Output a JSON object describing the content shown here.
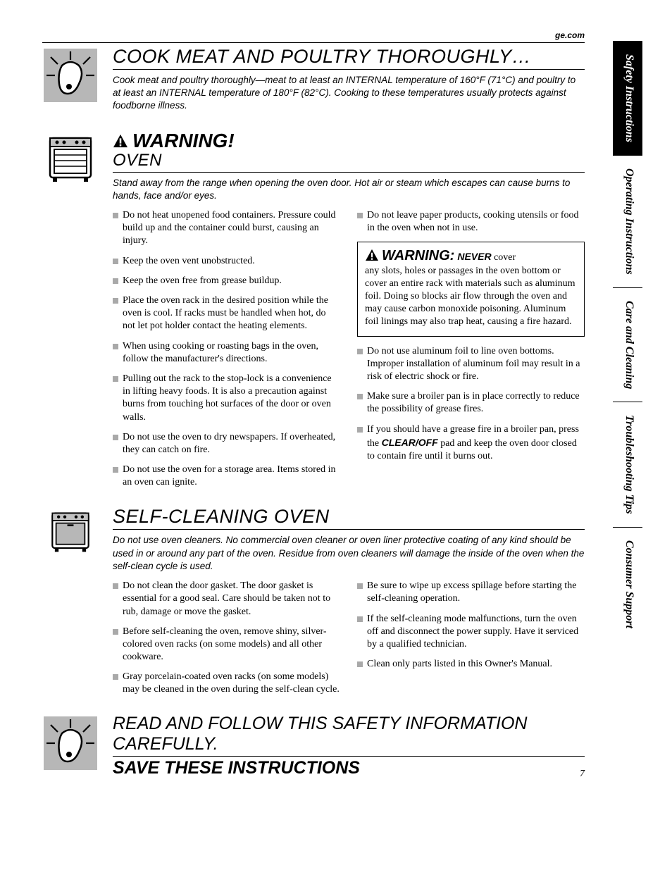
{
  "brand": "ge.com",
  "page_number": "7",
  "side_tabs": [
    {
      "label": "Safety Instructions",
      "active": true
    },
    {
      "label": "Operating Instructions",
      "active": false
    },
    {
      "label": "Care and Cleaning",
      "active": false
    },
    {
      "label": "Troubleshooting Tips",
      "active": false
    },
    {
      "label": "Consumer Support",
      "active": false
    }
  ],
  "section1": {
    "title": "COOK MEAT AND POULTRY THOROUGHLY…",
    "intro": "Cook meat and poultry thoroughly—meat to at least an INTERNAL temperature of 160°F (71°C) and poultry to at least an INTERNAL temperature of 180°F (82°C). Cooking to these temperatures usually protects against foodborne illness."
  },
  "section2": {
    "warning": "WARNING!",
    "subtitle": "OVEN",
    "intro": "Stand away from the range when opening the oven door. Hot air or steam which escapes can cause burns to hands, face and/or eyes.",
    "left": [
      "Do not heat unopened food containers. Pressure could build up and the container could burst, causing an injury.",
      "Keep the oven vent unobstructed.",
      "Keep the oven free from grease buildup.",
      "Place the oven rack in the desired position while the oven is cool. If racks must be handled when hot, do not let pot holder contact the heating elements.",
      "When using cooking or roasting bags in the oven, follow the manufacturer's directions.",
      "Pulling out the rack to the stop-lock is a convenience in lifting heavy foods. It is also a precaution against burns from touching hot surfaces of the door or oven walls.",
      "Do not use the oven to dry newspapers. If overheated, they can catch on fire.",
      "Do not use the oven for a storage area. Items stored in an oven can ignite."
    ],
    "right_top": "Do not leave paper products, cooking utensils or food in the oven when not in use.",
    "box": {
      "warning": "WARNING:",
      "never": "NEVER",
      "lead": " cover",
      "body": "any slots, holes or passages in the oven bottom or cover an entire rack with materials such as aluminum foil. Doing so blocks air flow through the oven and may cause carbon monoxide poisoning. Aluminum foil linings may also trap heat, causing a fire hazard."
    },
    "right_after": [
      "Do not use aluminum foil to line oven bottoms. Improper installation of aluminum foil may result in a risk of electric shock or fire.",
      "Make sure a broiler pan is in place correctly to reduce the possibility of grease fires."
    ],
    "right_last_pre": "If you should have a grease fire in a broiler pan, press the ",
    "right_last_bold": "CLEAR/OFF",
    "right_last_post": " pad and keep the oven door closed to contain fire until it burns out."
  },
  "section3": {
    "title": "SELF-CLEANING OVEN",
    "intro": "Do not use oven cleaners. No commercial oven cleaner or oven liner protective coating of any kind should be used in or around any part of the oven. Residue from oven cleaners will damage the inside of the oven when the self-clean cycle is used.",
    "left": [
      "Do not clean the door gasket. The door gasket is essential for a good seal. Care should be taken not to rub, damage or move the gasket.",
      "Before self-cleaning the oven, remove shiny, silver-colored oven racks (on some models) and all other cookware.",
      "Gray porcelain-coated oven racks (on some models) may be cleaned in the oven during the self-clean cycle."
    ],
    "right": [
      "Be sure to wipe up excess spillage before starting the self-cleaning operation.",
      "If the self-cleaning mode malfunctions, turn the oven off and disconnect the power supply. Have it serviced by a qualified technician.",
      "Clean only parts listed in this Owner's Manual."
    ]
  },
  "footer": {
    "title": "READ AND FOLLOW THIS SAFETY INFORMATION CAREFULLY.",
    "save": "SAVE THESE INSTRUCTIONS"
  },
  "colors": {
    "bullet": "#a9a9a9",
    "tab_active_bg": "#000000",
    "tab_active_fg": "#ffffff"
  }
}
